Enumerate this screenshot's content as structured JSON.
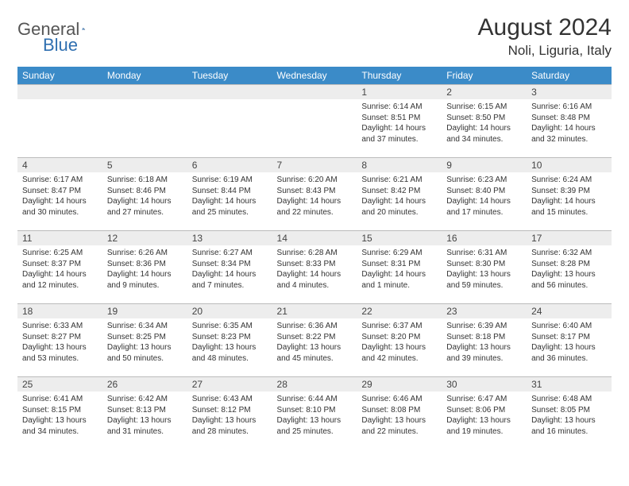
{
  "brand": {
    "name_gray": "General",
    "name_blue": "Blue"
  },
  "title": {
    "month": "August 2024",
    "location": "Noli, Liguria, Italy"
  },
  "headers": [
    "Sunday",
    "Monday",
    "Tuesday",
    "Wednesday",
    "Thursday",
    "Friday",
    "Saturday"
  ],
  "colors": {
    "header_bg": "#3b8bc8",
    "header_fg": "#ffffff",
    "daynum_bg": "#ededed",
    "border": "#bbbbbb",
    "logo_gray": "#555555",
    "logo_blue": "#2f6fb0"
  },
  "weeks": [
    [
      null,
      null,
      null,
      null,
      {
        "n": "1",
        "sr": "6:14 AM",
        "ss": "8:51 PM",
        "dl": "14 hours and 37 minutes."
      },
      {
        "n": "2",
        "sr": "6:15 AM",
        "ss": "8:50 PM",
        "dl": "14 hours and 34 minutes."
      },
      {
        "n": "3",
        "sr": "6:16 AM",
        "ss": "8:48 PM",
        "dl": "14 hours and 32 minutes."
      }
    ],
    [
      {
        "n": "4",
        "sr": "6:17 AM",
        "ss": "8:47 PM",
        "dl": "14 hours and 30 minutes."
      },
      {
        "n": "5",
        "sr": "6:18 AM",
        "ss": "8:46 PM",
        "dl": "14 hours and 27 minutes."
      },
      {
        "n": "6",
        "sr": "6:19 AM",
        "ss": "8:44 PM",
        "dl": "14 hours and 25 minutes."
      },
      {
        "n": "7",
        "sr": "6:20 AM",
        "ss": "8:43 PM",
        "dl": "14 hours and 22 minutes."
      },
      {
        "n": "8",
        "sr": "6:21 AM",
        "ss": "8:42 PM",
        "dl": "14 hours and 20 minutes."
      },
      {
        "n": "9",
        "sr": "6:23 AM",
        "ss": "8:40 PM",
        "dl": "14 hours and 17 minutes."
      },
      {
        "n": "10",
        "sr": "6:24 AM",
        "ss": "8:39 PM",
        "dl": "14 hours and 15 minutes."
      }
    ],
    [
      {
        "n": "11",
        "sr": "6:25 AM",
        "ss": "8:37 PM",
        "dl": "14 hours and 12 minutes."
      },
      {
        "n": "12",
        "sr": "6:26 AM",
        "ss": "8:36 PM",
        "dl": "14 hours and 9 minutes."
      },
      {
        "n": "13",
        "sr": "6:27 AM",
        "ss": "8:34 PM",
        "dl": "14 hours and 7 minutes."
      },
      {
        "n": "14",
        "sr": "6:28 AM",
        "ss": "8:33 PM",
        "dl": "14 hours and 4 minutes."
      },
      {
        "n": "15",
        "sr": "6:29 AM",
        "ss": "8:31 PM",
        "dl": "14 hours and 1 minute."
      },
      {
        "n": "16",
        "sr": "6:31 AM",
        "ss": "8:30 PM",
        "dl": "13 hours and 59 minutes."
      },
      {
        "n": "17",
        "sr": "6:32 AM",
        "ss": "8:28 PM",
        "dl": "13 hours and 56 minutes."
      }
    ],
    [
      {
        "n": "18",
        "sr": "6:33 AM",
        "ss": "8:27 PM",
        "dl": "13 hours and 53 minutes."
      },
      {
        "n": "19",
        "sr": "6:34 AM",
        "ss": "8:25 PM",
        "dl": "13 hours and 50 minutes."
      },
      {
        "n": "20",
        "sr": "6:35 AM",
        "ss": "8:23 PM",
        "dl": "13 hours and 48 minutes."
      },
      {
        "n": "21",
        "sr": "6:36 AM",
        "ss": "8:22 PM",
        "dl": "13 hours and 45 minutes."
      },
      {
        "n": "22",
        "sr": "6:37 AM",
        "ss": "8:20 PM",
        "dl": "13 hours and 42 minutes."
      },
      {
        "n": "23",
        "sr": "6:39 AM",
        "ss": "8:18 PM",
        "dl": "13 hours and 39 minutes."
      },
      {
        "n": "24",
        "sr": "6:40 AM",
        "ss": "8:17 PM",
        "dl": "13 hours and 36 minutes."
      }
    ],
    [
      {
        "n": "25",
        "sr": "6:41 AM",
        "ss": "8:15 PM",
        "dl": "13 hours and 34 minutes."
      },
      {
        "n": "26",
        "sr": "6:42 AM",
        "ss": "8:13 PM",
        "dl": "13 hours and 31 minutes."
      },
      {
        "n": "27",
        "sr": "6:43 AM",
        "ss": "8:12 PM",
        "dl": "13 hours and 28 minutes."
      },
      {
        "n": "28",
        "sr": "6:44 AM",
        "ss": "8:10 PM",
        "dl": "13 hours and 25 minutes."
      },
      {
        "n": "29",
        "sr": "6:46 AM",
        "ss": "8:08 PM",
        "dl": "13 hours and 22 minutes."
      },
      {
        "n": "30",
        "sr": "6:47 AM",
        "ss": "8:06 PM",
        "dl": "13 hours and 19 minutes."
      },
      {
        "n": "31",
        "sr": "6:48 AM",
        "ss": "8:05 PM",
        "dl": "13 hours and 16 minutes."
      }
    ]
  ],
  "labels": {
    "sunrise": "Sunrise:",
    "sunset": "Sunset:",
    "daylight": "Daylight:"
  }
}
